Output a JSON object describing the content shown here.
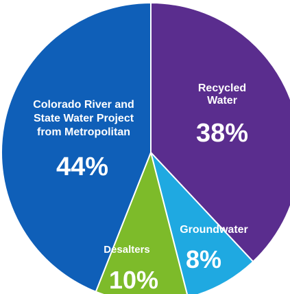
{
  "chart_data": {
    "type": "pie",
    "slices": [
      {
        "label_lines": [
          "Recycled",
          "Water"
        ],
        "value": 38,
        "value_label": "38%",
        "color": "#5a2d8e"
      },
      {
        "label_lines": [
          "Groundwater"
        ],
        "value": 8,
        "value_label": "8%",
        "color": "#1fa9e1"
      },
      {
        "label_lines": [
          "Desalters"
        ],
        "value": 10,
        "value_label": "10%",
        "color": "#7dbb2a"
      },
      {
        "label_lines": [
          "Colorado River and",
          "State Water Project",
          "from Metropolitan"
        ],
        "value": 44,
        "value_label": "44%",
        "color": "#0f5fb8"
      }
    ]
  }
}
